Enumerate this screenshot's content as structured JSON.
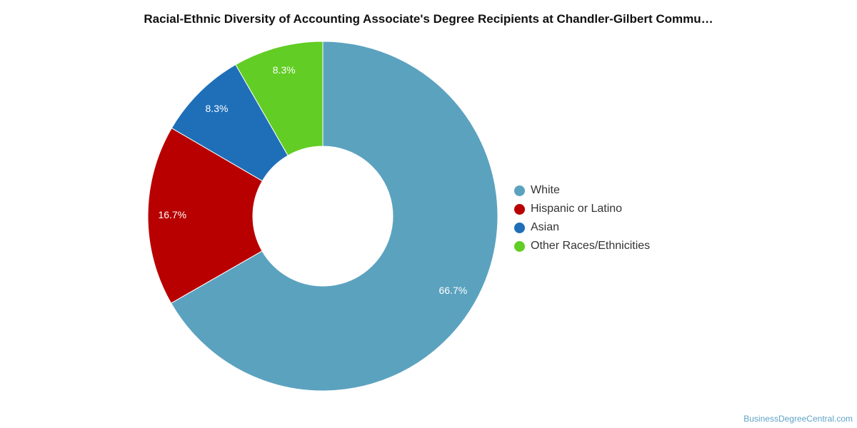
{
  "title": "Racial-Ethnic Diversity of Accounting Associate's Degree Recipients at Chandler-Gilbert Commu…",
  "watermark": "BusinessDegreeCentral.com",
  "chart_data": {
    "type": "pie",
    "title": "Racial-Ethnic Diversity of Accounting Associate's Degree Recipients at Chandler-Gilbert Commu…",
    "donut": true,
    "legend_position": "right",
    "categories": [
      "White",
      "Hispanic or Latino",
      "Asian",
      "Other Races/Ethnicities"
    ],
    "values": [
      66.7,
      16.7,
      8.3,
      8.3
    ],
    "labels": [
      "66.7%",
      "16.7%",
      "8.3%",
      "8.3%"
    ],
    "colors": [
      "#5ba2bf",
      "#b80000",
      "#1f6fb8",
      "#62cd24"
    ]
  }
}
